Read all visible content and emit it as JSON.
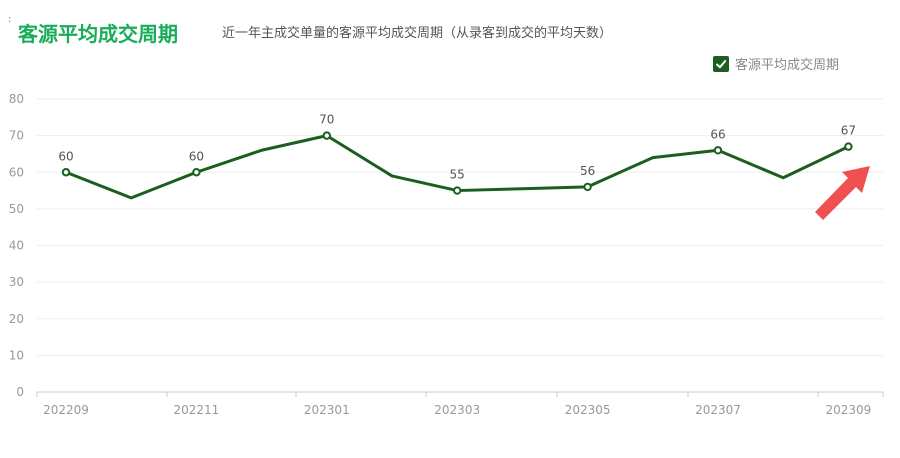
{
  "header": {
    "mark": ":",
    "title": "客源平均成交周期",
    "subtitle": "近一年主成交单量的客源平均成交周期（从录客到成交的平均天数）"
  },
  "legend": {
    "label": "客源平均成交周期",
    "checked": true
  },
  "colors": {
    "line": "#1b5e20",
    "title": "#1aab5b",
    "arrow": "#f05050",
    "grid": "#eeeeee"
  },
  "chart_data": {
    "type": "line",
    "categories": [
      "202209",
      "202210",
      "202211",
      "202212",
      "202301",
      "202302",
      "202303",
      "202304",
      "202305",
      "202306",
      "202307",
      "202308",
      "202309"
    ],
    "x_tick_labels": [
      "202209",
      "202211",
      "202301",
      "202303",
      "202305",
      "202307",
      "202309"
    ],
    "series": [
      {
        "name": "客源平均成交周期",
        "values": [
          60,
          53,
          60,
          66,
          70,
          59,
          55,
          55.5,
          56,
          64,
          66,
          58.5,
          67
        ]
      }
    ],
    "data_labels": [
      {
        "index": 0,
        "text": "60"
      },
      {
        "index": 2,
        "text": "60"
      },
      {
        "index": 4,
        "text": "70"
      },
      {
        "index": 6,
        "text": "55"
      },
      {
        "index": 8,
        "text": "56"
      },
      {
        "index": 10,
        "text": "66"
      },
      {
        "index": 12,
        "text": "67"
      }
    ],
    "y_ticks": [
      0,
      10,
      20,
      30,
      40,
      50,
      60,
      70,
      80
    ],
    "ylim": [
      0,
      80
    ],
    "grid": true,
    "legend_position": "top-right"
  },
  "annotation": {
    "icon": "red-arrow-icon"
  }
}
